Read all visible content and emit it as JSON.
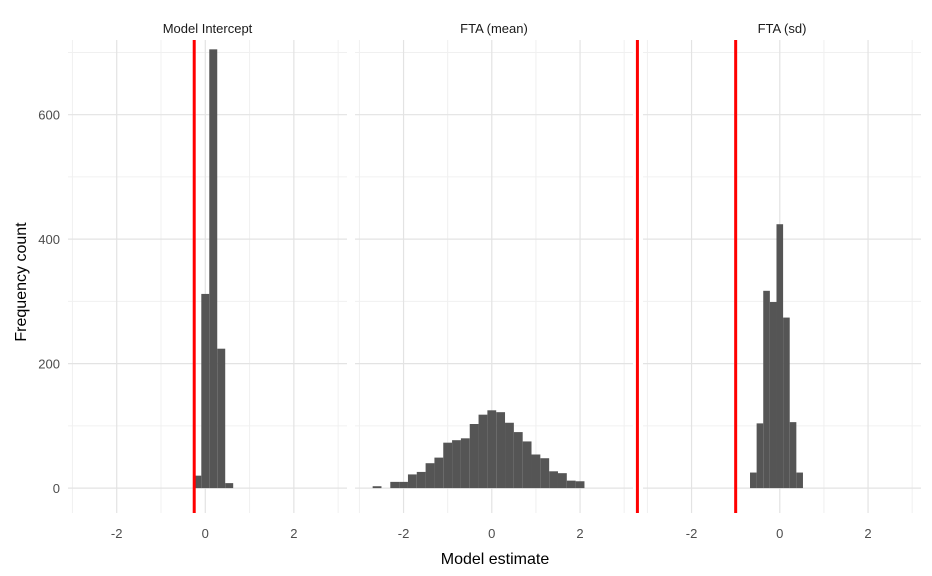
{
  "chart_data": {
    "type": "bar",
    "layout": "facets",
    "xlabel": "Model estimate",
    "ylabel": "Frequency count",
    "ylim": [
      -40,
      720
    ],
    "y_ticks": [
      0,
      200,
      400,
      600
    ],
    "y_tick_labels": [
      "0",
      "200",
      "400",
      "600"
    ],
    "grid": true,
    "bar_color": "#555555",
    "reference_line_color": "#ff0000",
    "facets": [
      {
        "title": "Model Intercept",
        "xlim": [
          -3.1,
          3.2
        ],
        "x_ticks": [
          -2,
          0,
          2
        ],
        "x_tick_labels": [
          "-2",
          "0",
          "2"
        ],
        "bin_width": 0.18,
        "bins": [
          {
            "x": -0.18,
            "count": 20
          },
          {
            "x": 0.0,
            "count": 312
          },
          {
            "x": 0.18,
            "count": 705
          },
          {
            "x": 0.36,
            "count": 224
          },
          {
            "x": 0.54,
            "count": 8
          }
        ],
        "reference_x": -0.25
      },
      {
        "title": "FTA (mean)",
        "xlim": [
          -3.1,
          3.2
        ],
        "x_ticks": [
          -2,
          0,
          2
        ],
        "x_tick_labels": [
          "-2",
          "0",
          "2"
        ],
        "bin_width": 0.2,
        "bins": [
          {
            "x": -2.6,
            "count": 3
          },
          {
            "x": -2.4,
            "count": 0
          },
          {
            "x": -2.2,
            "count": 10
          },
          {
            "x": -2.0,
            "count": 10
          },
          {
            "x": -1.8,
            "count": 22
          },
          {
            "x": -1.6,
            "count": 26
          },
          {
            "x": -1.4,
            "count": 40
          },
          {
            "x": -1.2,
            "count": 49
          },
          {
            "x": -1.0,
            "count": 73
          },
          {
            "x": -0.8,
            "count": 77
          },
          {
            "x": -0.6,
            "count": 80
          },
          {
            "x": -0.4,
            "count": 103
          },
          {
            "x": -0.2,
            "count": 118
          },
          {
            "x": 0.0,
            "count": 125
          },
          {
            "x": 0.2,
            "count": 122
          },
          {
            "x": 0.4,
            "count": 105
          },
          {
            "x": 0.6,
            "count": 90
          },
          {
            "x": 0.8,
            "count": 75
          },
          {
            "x": 1.0,
            "count": 54
          },
          {
            "x": 1.2,
            "count": 48
          },
          {
            "x": 1.4,
            "count": 27
          },
          {
            "x": 1.6,
            "count": 24
          },
          {
            "x": 1.8,
            "count": 12
          },
          {
            "x": 2.0,
            "count": 11
          }
        ],
        "reference_x": 3.3
      },
      {
        "title": "FTA (sd)",
        "xlim": [
          -3.1,
          3.2
        ],
        "x_ticks": [
          -2,
          0,
          2
        ],
        "x_tick_labels": [
          "-2",
          "0",
          "2"
        ],
        "bin_width": 0.15,
        "bins": [
          {
            "x": -0.6,
            "count": 25
          },
          {
            "x": -0.45,
            "count": 104
          },
          {
            "x": -0.3,
            "count": 317
          },
          {
            "x": -0.15,
            "count": 299
          },
          {
            "x": 0.0,
            "count": 424
          },
          {
            "x": 0.15,
            "count": 274
          },
          {
            "x": 0.3,
            "count": 106
          },
          {
            "x": 0.45,
            "count": 25
          }
        ],
        "reference_x": -1.0
      }
    ]
  }
}
